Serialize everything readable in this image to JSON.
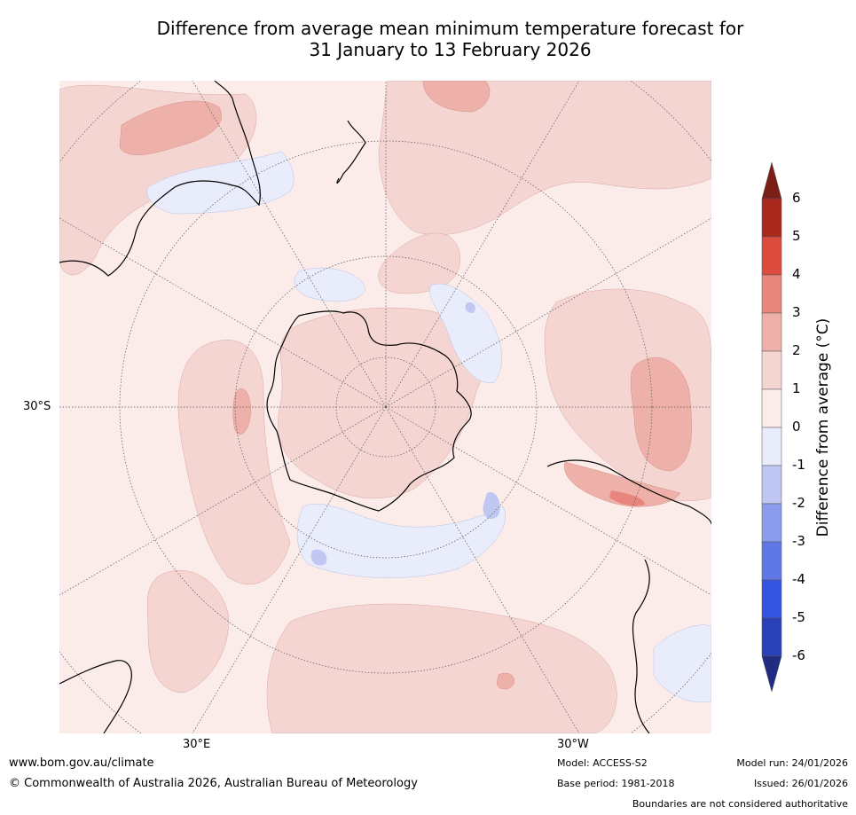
{
  "title": {
    "line1": "Difference from average mean minimum temperature forecast for",
    "line2": "31 January to 13 February 2026"
  },
  "map": {
    "projection": "south-polar-stereographic",
    "lat_label": "30°S",
    "lon_labels": [
      "30°E",
      "30°W"
    ],
    "regions_shown": [
      "Antarctica",
      "Australia",
      "New Zealand",
      "South America",
      "Southern Africa"
    ]
  },
  "colorbar": {
    "label": "Difference from average (°C)",
    "ticks": [
      "6",
      "5",
      "4",
      "3",
      "2",
      "1",
      "0",
      "-1",
      "-2",
      "-3",
      "-4",
      "-5",
      "-6"
    ],
    "colors": {
      "above_6": "#7a1e16",
      "5_to_6": "#a8281e",
      "4_to_5": "#db4c3f",
      "3_to_4": "#e8857c",
      "2_to_3": "#eeb1aa",
      "1_to_2": "#f5d5d2",
      "0_to_1": "#fbecea",
      "neg1_to_0": "#e8ecfb",
      "neg2_to_neg1": "#bfc7f2",
      "neg3_to_neg2": "#8b9cec",
      "neg4_to_neg3": "#5f78e6",
      "neg5_to_neg4": "#3554e2",
      "neg6_to_neg5": "#2a40b6",
      "below_neg6": "#1f2c82"
    }
  },
  "footer": {
    "website": "www.bom.gov.au/climate",
    "copyright": "© Commonwealth of Australia 2026, Australian Bureau of Meteorology",
    "model": "Model: ACCESS-S2",
    "base_period": "Base period: 1981-2018",
    "model_run": "Model run: 24/01/2026",
    "issued": "Issued: 26/01/2026",
    "disclaimer": "Boundaries are not considered authoritative"
  }
}
